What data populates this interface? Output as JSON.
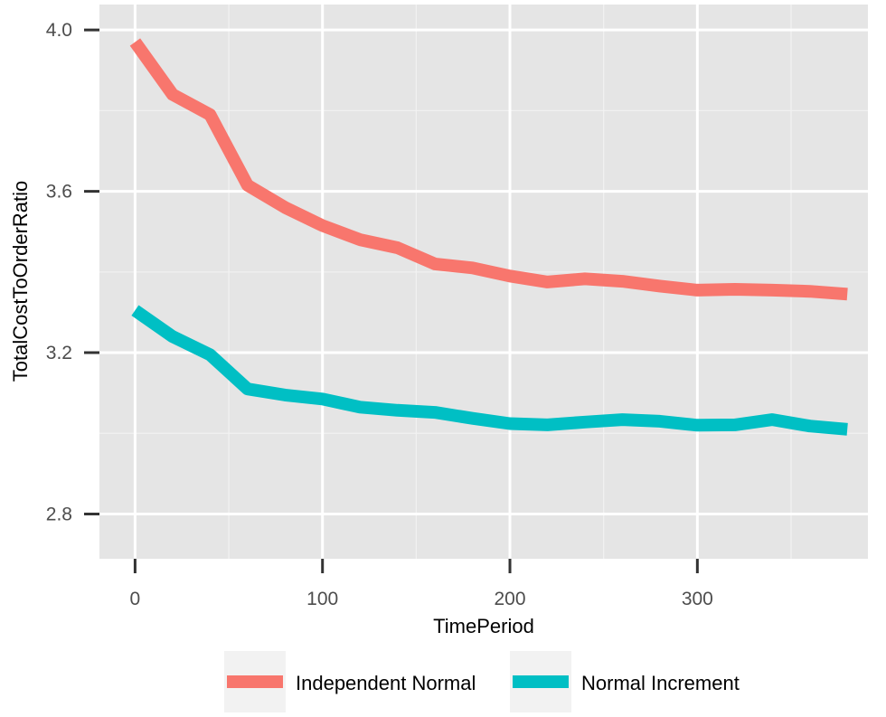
{
  "chart_data": {
    "type": "line",
    "title": "",
    "xlabel": "TimePeriod",
    "ylabel": "TotalCostToOrderRatio",
    "xlim": [
      -19,
      391
    ],
    "ylim": [
      2.689,
      4.063
    ],
    "x_ticks": [
      0,
      100,
      200,
      300
    ],
    "x_tick_labels": [
      "0",
      "100",
      "200",
      "300"
    ],
    "y_ticks": [
      2.8,
      3.2,
      3.6,
      4.0
    ],
    "y_tick_labels": [
      "2.8",
      "3.2",
      "3.6",
      "4.0"
    ],
    "grid": true,
    "legend_position": "bottom",
    "x": [
      0,
      20,
      40,
      60,
      80,
      100,
      120,
      140,
      160,
      180,
      200,
      220,
      240,
      260,
      280,
      300,
      320,
      340,
      360,
      380
    ],
    "series": [
      {
        "name": "Independent Normal",
        "color": "#F8766D",
        "values": [
          3.97,
          3.84,
          3.79,
          3.615,
          3.56,
          3.515,
          3.48,
          3.46,
          3.42,
          3.41,
          3.39,
          3.375,
          3.383,
          3.377,
          3.365,
          3.355,
          3.357,
          3.355,
          3.352,
          3.345
        ]
      },
      {
        "name": "Normal Increment",
        "color": "#00BFC4",
        "values": [
          3.305,
          3.24,
          3.195,
          3.11,
          3.095,
          3.085,
          3.065,
          3.057,
          3.052,
          3.037,
          3.024,
          3.021,
          3.028,
          3.034,
          3.03,
          3.02,
          3.021,
          3.034,
          3.018,
          3.01
        ]
      }
    ]
  }
}
